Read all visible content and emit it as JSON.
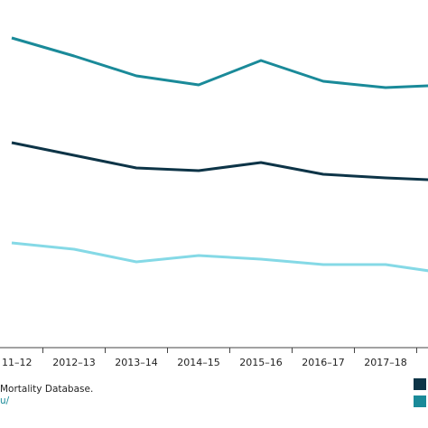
{
  "chart_data": {
    "type": "line",
    "categories": [
      "11–12",
      "2012–13",
      "2013–14",
      "2014–15",
      "2015–16",
      "2016–17",
      "2017–18",
      null
    ],
    "series": [
      {
        "color": "#1a8a99",
        "values": [
          343,
          323,
          301,
          291,
          318,
          295,
          288,
          291
        ]
      },
      {
        "color": "#0d3447",
        "values": [
          227,
          213,
          199,
          196,
          205,
          192,
          188,
          185
        ]
      },
      {
        "color": "#85d9e6",
        "values": [
          116,
          109,
          95,
          102,
          98,
          92,
          92,
          82
        ]
      }
    ],
    "ylim": [
      0,
      385
    ],
    "source_lines": [
      "Mortality Database.",
      "u/"
    ]
  }
}
